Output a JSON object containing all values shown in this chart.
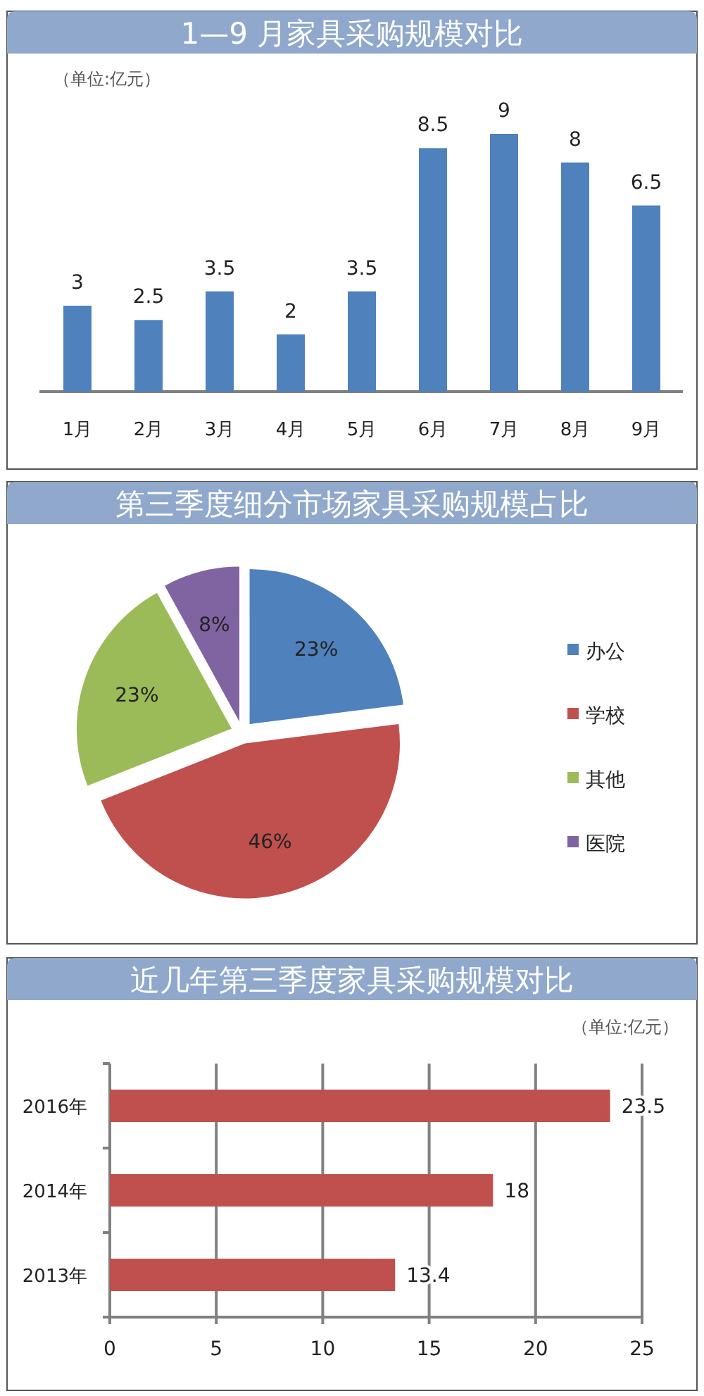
{
  "chart_data": [
    {
      "type": "bar",
      "title": "1—9 月家具采购规模对比",
      "annotations": [
        "（单位:亿元）"
      ],
      "categories": [
        "1月",
        "2月",
        "3月",
        "4月",
        "5月",
        "6月",
        "7月",
        "8月",
        "9月"
      ],
      "values": [
        3,
        2.5,
        3.5,
        2,
        3.5,
        8.5,
        9,
        8,
        6.5
      ],
      "color": "#4f81bd",
      "data_labels": true
    },
    {
      "type": "pie",
      "title": "第三季度细分市场家具采购规模占比",
      "categories": [
        "办公",
        "学校",
        "其他",
        "医院"
      ],
      "values": [
        23,
        46,
        23,
        8
      ],
      "colors": [
        "#4f81bd",
        "#c0504d",
        "#9bbb59",
        "#8064a2"
      ],
      "value_labels": [
        "23%",
        "46%",
        "23%",
        "8%"
      ],
      "legend": "right"
    },
    {
      "type": "bar",
      "orientation": "horizontal",
      "title": "近几年第三季度家具采购规模对比",
      "annotations": [
        "（单位:亿元）"
      ],
      "categories": [
        "2016年",
        "2014年",
        "2013年"
      ],
      "values": [
        23.5,
        18,
        13.4
      ],
      "color": "#c0504d",
      "xlim": [
        0,
        25
      ],
      "xticks": [
        0,
        5,
        10,
        15,
        20,
        25
      ],
      "grid": "x",
      "data_labels": true
    }
  ]
}
